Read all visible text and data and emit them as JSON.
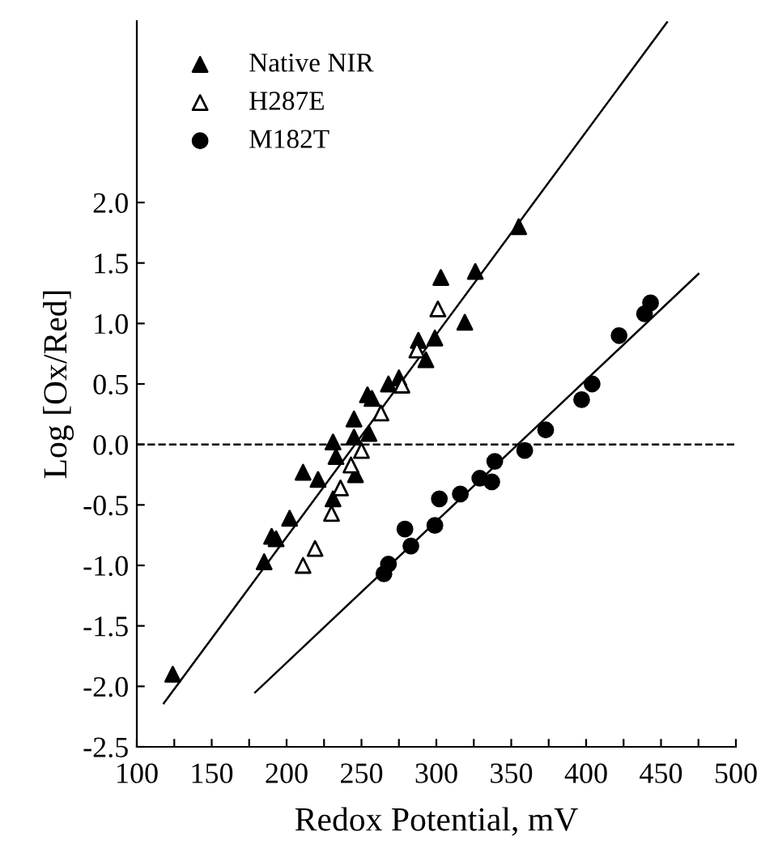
{
  "chart_data": {
    "type": "scatter",
    "xlabel": "Redox Potential, mV",
    "ylabel": "Log [Ox/Red]",
    "xlim": [
      100,
      500
    ],
    "xticks": [
      100,
      {
        "value": 125,
        "label": null
      },
      150,
      {
        "value": 175,
        "label": null
      },
      200,
      {
        "value": 225,
        "label": null
      },
      250,
      {
        "value": 275,
        "label": null
      },
      300,
      {
        "value": 325,
        "label": null
      },
      350,
      {
        "value": 375,
        "label": null
      },
      400,
      {
        "value": 425,
        "label": null
      },
      450,
      {
        "value": 475,
        "label": null
      },
      500
    ],
    "ylim": [
      -2.5,
      3.5
    ],
    "yticks": [
      -2.5,
      {
        "value": -2,
        "label": "-2.0"
      },
      -1.5,
      {
        "value": -1,
        "label": "-1.0"
      },
      -0.5,
      {
        "value": 0,
        "label": "0.0"
      },
      0.5,
      {
        "value": 1,
        "label": "1.0"
      },
      1.5,
      {
        "value": 2,
        "label": "2.0"
      }
    ],
    "legend": "top left",
    "grid": false,
    "ref_lines": [
      {
        "axis": "y",
        "value": 0,
        "line_style": "dashed",
        "color": "#000000"
      }
    ],
    "series": [
      {
        "name": "Native NIR",
        "color": "#000000",
        "marker": "triangle",
        "x": [
          124,
          185,
          190,
          193,
          202,
          211,
          221,
          231,
          246,
          233,
          231,
          245,
          255,
          245,
          254,
          257,
          268,
          275,
          290,
          293,
          288,
          299,
          303,
          319,
          326,
          355
        ],
        "values": [
          -1.9,
          -0.97,
          -0.76,
          -0.78,
          -0.61,
          -0.23,
          -0.29,
          -0.45,
          -0.25,
          -0.1,
          0.02,
          0.06,
          0.09,
          0.21,
          0.41,
          0.38,
          0.5,
          0.55,
          null,
          0.7,
          0.86,
          0.88,
          1.38,
          1.01,
          1.43,
          1.8
        ]
      },
      {
        "name": "H287E",
        "color": "#000000",
        "marker": "triangle_open",
        "x": [
          211,
          219,
          230,
          236,
          243,
          250,
          263,
          277,
          287,
          301
        ],
        "values": [
          -1.0,
          -0.86,
          -0.57,
          -0.36,
          -0.17,
          -0.05,
          0.26,
          0.49,
          0.78,
          1.12
        ]
      },
      {
        "name": "M182T",
        "color": "#000000",
        "marker": "circle",
        "x": [
          265,
          268,
          279,
          283,
          299,
          302,
          316,
          329,
          337,
          339,
          359,
          373,
          397,
          404,
          422,
          439,
          443
        ],
        "values": [
          -1.07,
          -0.99,
          -0.7,
          -0.84,
          -0.67,
          -0.45,
          -0.41,
          -0.28,
          -0.31,
          -0.14,
          -0.05,
          0.12,
          0.37,
          0.5,
          0.9,
          1.08,
          1.17
        ]
      },
      {
        "type": "line",
        "color": "#000000",
        "x": [
          118,
          454
        ],
        "values": [
          -2.14,
          3.49
        ]
      },
      {
        "type": "line",
        "color": "#000000",
        "x": [
          179,
          475
        ],
        "values": [
          -2.05,
          1.41
        ]
      }
    ]
  }
}
